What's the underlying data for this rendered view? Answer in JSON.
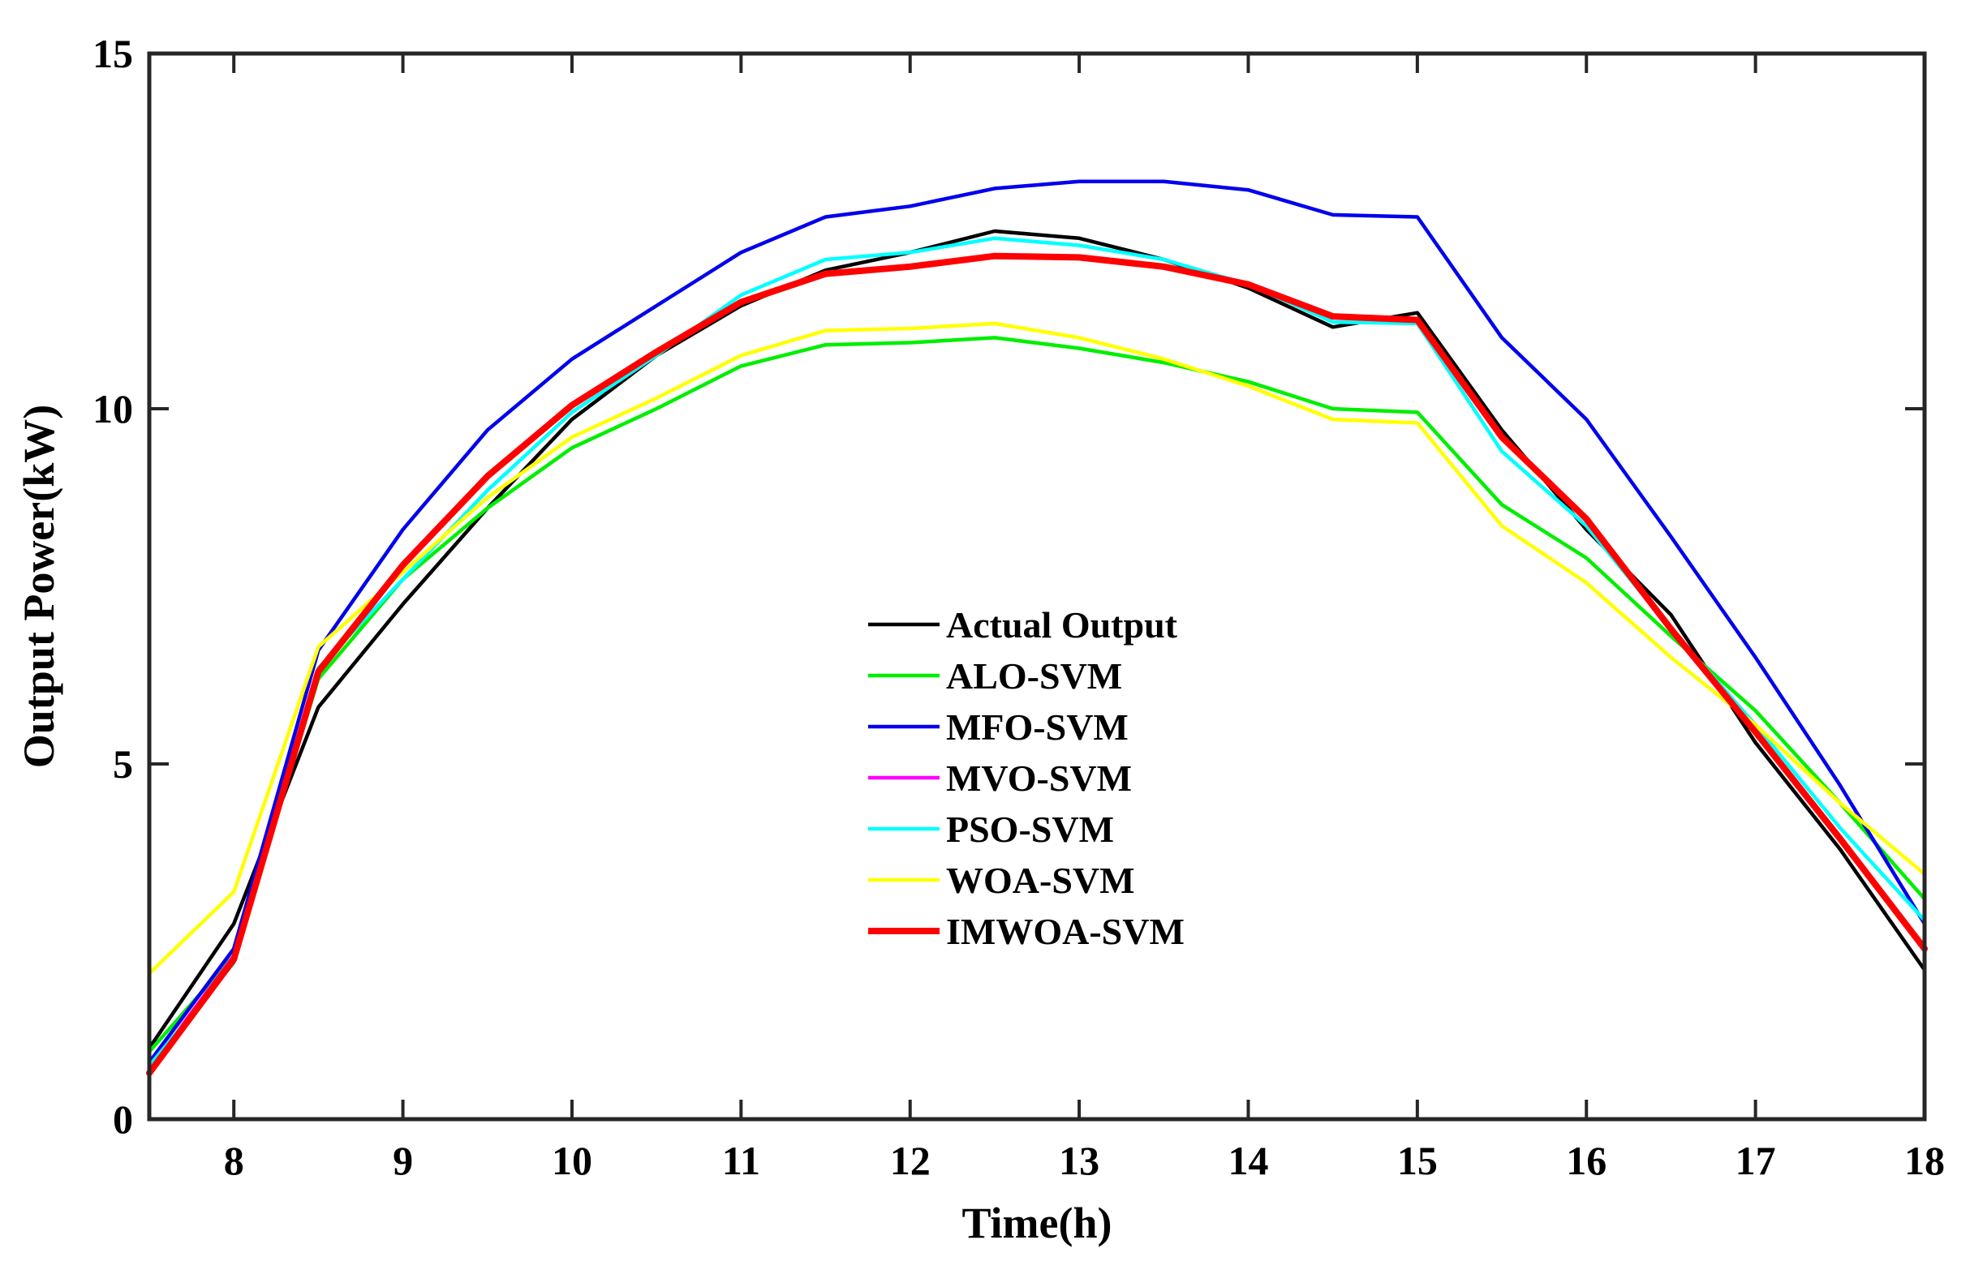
{
  "chart_data": {
    "type": "line",
    "title": "",
    "xlabel": "Time(h)",
    "ylabel": "Output Power(kW)",
    "xlim": [
      7.5,
      18
    ],
    "ylim": [
      0,
      15
    ],
    "xticks": [
      8,
      9,
      10,
      11,
      12,
      13,
      14,
      15,
      16,
      17,
      18
    ],
    "yticks": [
      0,
      5,
      10,
      15
    ],
    "xtick_labels": [
      "8",
      "9",
      "10",
      "11",
      "12",
      "13",
      "14",
      "15",
      "16",
      "17",
      "18"
    ],
    "ytick_labels": [
      "0",
      "5",
      "10",
      "15"
    ],
    "grid": false,
    "legend_position": "center",
    "x": [
      7.5,
      8,
      8.5,
      9,
      9.5,
      10,
      10.5,
      11,
      11.5,
      12,
      12.5,
      13,
      13.5,
      14,
      14.5,
      15,
      15.5,
      16,
      16.5,
      17,
      17.5,
      18
    ],
    "series": [
      {
        "name": "Actual Output",
        "color": "#000000",
        "values": [
          1.0,
          2.75,
          5.8,
          7.25,
          8.6,
          9.85,
          10.75,
          11.45,
          11.95,
          12.2,
          12.5,
          12.4,
          12.1,
          11.7,
          11.15,
          11.35,
          9.7,
          8.3,
          7.1,
          5.3,
          3.8,
          2.1
        ]
      },
      {
        "name": "ALO-SVM",
        "color": "#00ee00",
        "values": [
          0.95,
          2.3,
          6.2,
          7.6,
          8.6,
          9.45,
          10.0,
          10.6,
          10.9,
          10.93,
          11.0,
          10.85,
          10.65,
          10.38,
          10.0,
          9.95,
          8.65,
          7.9,
          6.8,
          5.75,
          4.45,
          3.1
        ]
      },
      {
        "name": "MFO-SVM",
        "color": "#0000ee",
        "values": [
          0.8,
          2.4,
          6.6,
          8.3,
          9.7,
          10.7,
          11.45,
          12.2,
          12.7,
          12.85,
          13.1,
          13.2,
          13.2,
          13.08,
          12.73,
          12.7,
          11.0,
          9.85,
          8.2,
          6.5,
          4.7,
          2.75
        ]
      },
      {
        "name": "MVO-SVM",
        "color": "#ff00ff",
        "values": [
          0.7,
          2.3,
          6.3,
          7.8,
          9.05,
          10.05,
          10.8,
          11.5,
          11.9,
          12.0,
          12.15,
          12.13,
          12.0,
          11.75,
          11.3,
          11.25,
          9.6,
          8.45,
          6.9,
          5.45,
          3.95,
          2.4
        ]
      },
      {
        "name": "PSO-SVM",
        "color": "#00ffff",
        "values": [
          0.75,
          2.2,
          6.35,
          7.6,
          8.85,
          9.95,
          10.75,
          11.6,
          12.1,
          12.2,
          12.4,
          12.3,
          12.1,
          11.75,
          11.22,
          11.2,
          9.4,
          8.35,
          6.9,
          5.55,
          4.1,
          2.8
        ]
      },
      {
        "name": "WOA-SVM",
        "color": "#ffff00",
        "values": [
          2.05,
          3.2,
          6.65,
          7.7,
          8.75,
          9.6,
          10.15,
          10.75,
          11.1,
          11.13,
          11.2,
          11.0,
          10.7,
          10.32,
          9.85,
          9.8,
          8.35,
          7.55,
          6.5,
          5.55,
          4.45,
          3.45
        ]
      },
      {
        "name": "IMWOA-SVM",
        "color": "#ff0000",
        "values": [
          0.65,
          2.25,
          6.3,
          7.8,
          9.05,
          10.05,
          10.8,
          11.5,
          11.9,
          12.0,
          12.15,
          12.13,
          12.0,
          11.75,
          11.3,
          11.25,
          9.6,
          8.45,
          6.9,
          5.45,
          3.95,
          2.4
        ]
      }
    ]
  }
}
